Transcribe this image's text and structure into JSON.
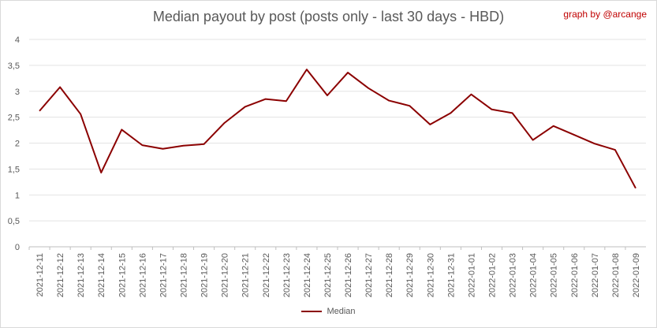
{
  "chart_data": {
    "type": "line",
    "title": "Median payout by post (posts only - last 30 days - HBD)",
    "credit": "graph by @arcange",
    "ylim": [
      0,
      4
    ],
    "yticks": [
      "0",
      "0,5",
      "1",
      "1,5",
      "2",
      "2,5",
      "3",
      "3,5",
      "4"
    ],
    "ytick_values": [
      0,
      0.5,
      1,
      1.5,
      2,
      2.5,
      3,
      3.5,
      4
    ],
    "grid": true,
    "legend_position": "bottom",
    "series_color": "#8b0000",
    "categories": [
      "2021-12-11",
      "2021-12-12",
      "2021-12-13",
      "2021-12-14",
      "2021-12-15",
      "2021-12-16",
      "2021-12-17",
      "2021-12-18",
      "2021-12-19",
      "2021-12-20",
      "2021-12-21",
      "2021-12-22",
      "2021-12-23",
      "2021-12-24",
      "2021-12-25",
      "2021-12-26",
      "2021-12-27",
      "2021-12-28",
      "2021-12-29",
      "2021-12-30",
      "2021-12-31",
      "2022-01-01",
      "2022-01-02",
      "2022-01-03",
      "2022-01-04",
      "2022-01-05",
      "2022-01-06",
      "2022-01-07",
      "2022-01-08",
      "2022-01-09"
    ],
    "series": [
      {
        "name": "Median",
        "values": [
          2.62,
          3.08,
          2.56,
          1.43,
          2.26,
          1.96,
          1.89,
          1.95,
          1.98,
          2.39,
          2.7,
          2.85,
          2.81,
          3.42,
          2.92,
          3.36,
          3.06,
          2.82,
          2.72,
          2.36,
          2.58,
          2.94,
          2.65,
          2.58,
          2.06,
          2.33,
          2.16,
          1.99,
          1.87,
          1.13
        ]
      }
    ]
  }
}
